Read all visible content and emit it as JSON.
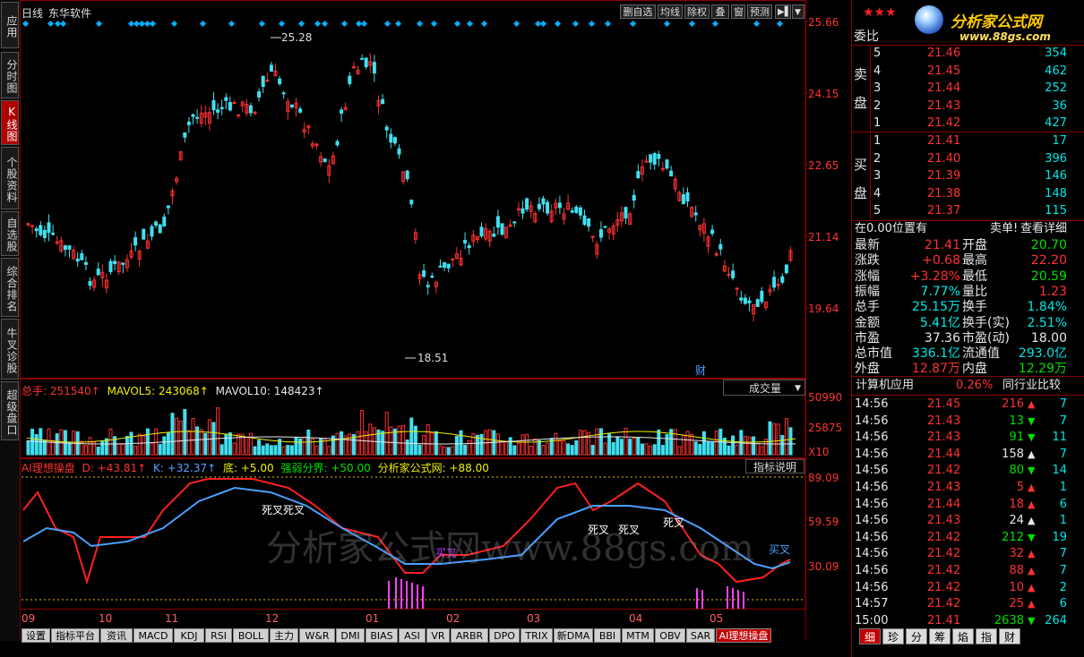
{
  "left_tabs": [
    {
      "label": "应用",
      "active": false
    },
    {
      "label": "分时图",
      "active": false
    },
    {
      "label": "K线图",
      "active": true
    },
    {
      "label": "个股资料",
      "active": false
    },
    {
      "label": "自选股",
      "active": false
    },
    {
      "label": "综合排名",
      "active": false
    },
    {
      "label": "牛叉诊股",
      "active": false
    },
    {
      "label": "超级盘口",
      "active": false
    }
  ],
  "header": {
    "period": "日线",
    "stock_name": "东华软件",
    "buttons": [
      "删自选",
      "均线",
      "除权",
      "叠",
      "窗",
      "预测"
    ]
  },
  "price_axis": [
    "25.66",
    "24.15",
    "22.65",
    "21.14",
    "19.64"
  ],
  "annotations": {
    "high": "25.28",
    "low": "18.51",
    "cai": "财"
  },
  "volume_panel": {
    "total_label": "总手: 251540↑",
    "mavol5_label": "MAVOL5: 243068↑",
    "mavol10_label": "MAVOL10: 148423↑",
    "dropdown": "成交量",
    "axis": [
      "50990",
      "25875",
      "X10"
    ]
  },
  "indicator_panel": {
    "name": "AI理想操盘",
    "d_label": "D: +43.81↑",
    "k_label": "K: +32.37↑",
    "di_label": "底: +5.00",
    "qr_label": "强弱分界: +50.00",
    "site_label": "分析家公式网: +88.00",
    "explain_button": "指标说明",
    "axis": [
      "89.09",
      "59.59",
      "30.09"
    ],
    "signals": [
      "死叉死叉",
      "买叉",
      "死叉",
      "死叉",
      "死叉",
      "买叉"
    ]
  },
  "x_axis_months": [
    "09",
    "10",
    "11",
    "12",
    "01",
    "02",
    "03",
    "04",
    "05"
  ],
  "watermark": "分析家公式网www.88gs.com",
  "bottom_tabs": [
    "设置",
    "指标平台",
    "资讯",
    "MACD",
    "KDJ",
    "RSI",
    "BOLL",
    "主力",
    "W&R",
    "DMI",
    "BIAS",
    "ASI",
    "VR",
    "ARBR",
    "DPO",
    "TRIX",
    "新DMA",
    "BBI",
    "MTM",
    "OBV",
    "SAR",
    "AI理想操盘"
  ],
  "right_panel": {
    "stars": "★★★",
    "logo_text": "分析家公式网",
    "logo_url": "www.88gs.com",
    "weibi_label": "委比",
    "sell_label": [
      "卖",
      "盘"
    ],
    "buy_label": [
      "买",
      "盘"
    ],
    "sell_orders": [
      {
        "level": "5",
        "price": "21.46",
        "vol": "354"
      },
      {
        "level": "4",
        "price": "21.45",
        "vol": "462"
      },
      {
        "level": "3",
        "price": "21.44",
        "vol": "252"
      },
      {
        "level": "2",
        "price": "21.43",
        "vol": "36"
      },
      {
        "level": "1",
        "price": "21.42",
        "vol": "427"
      }
    ],
    "buy_orders": [
      {
        "level": "1",
        "price": "21.41",
        "vol": "17"
      },
      {
        "level": "2",
        "price": "21.40",
        "vol": "396"
      },
      {
        "level": "3",
        "price": "21.39",
        "vol": "146"
      },
      {
        "level": "4",
        "price": "21.38",
        "vol": "148"
      },
      {
        "level": "5",
        "price": "21.37",
        "vol": "115"
      }
    ],
    "position_text": "在0.00位置有",
    "sell_detail": "卖单!",
    "view_detail": "查看详细",
    "quotes": [
      {
        "l1": "最新",
        "v1": "21.41",
        "l2": "开盘",
        "v2": "20.70",
        "c1": "red",
        "c2": "green"
      },
      {
        "l1": "涨跌",
        "v1": "+0.68",
        "l2": "最高",
        "v2": "22.20",
        "c1": "red",
        "c2": "red"
      },
      {
        "l1": "涨幅",
        "v1": "+3.28%",
        "l2": "最低",
        "v2": "20.59",
        "c1": "red",
        "c2": "green"
      },
      {
        "l1": "振幅",
        "v1": "7.77%",
        "l2": "量比",
        "v2": "1.23",
        "c1": "cyan",
        "c2": "red"
      },
      {
        "l1": "总手",
        "v1": "25.15万",
        "l2": "换手",
        "v2": "1.84%",
        "c1": "cyan",
        "c2": "cyan"
      },
      {
        "l1": "金额",
        "v1": "5.41亿",
        "l2": "换手(实)",
        "v2": "2.51%",
        "c1": "cyan",
        "c2": "cyan"
      },
      {
        "l1": "市盈",
        "v1": "37.36",
        "l2": "市盈(动)",
        "v2": "18.00",
        "c1": "white",
        "c2": "white"
      },
      {
        "l1": "总市值",
        "v1": "336.1亿",
        "l2": "流通值",
        "v2": "293.0亿",
        "c1": "cyan",
        "c2": "cyan"
      },
      {
        "l1": "外盘",
        "v1": "12.87万",
        "l2": "内盘",
        "v2": "12.29万",
        "c1": "red",
        "c2": "green"
      }
    ],
    "industry": {
      "name": "计算机应用",
      "change": "0.26%",
      "compare": "同行业比较"
    },
    "ticks": [
      {
        "time": "14:56",
        "price": "21.45",
        "vol": "216",
        "dir": "up",
        "n": "7"
      },
      {
        "time": "14:56",
        "price": "21.43",
        "vol": "13",
        "dir": "down",
        "n": "7"
      },
      {
        "time": "14:56",
        "price": "21.43",
        "vol": "91",
        "dir": "down",
        "n": "11"
      },
      {
        "time": "14:56",
        "price": "21.44",
        "vol": "158",
        "dir": "flat",
        "n": "7"
      },
      {
        "time": "14:56",
        "price": "21.42",
        "vol": "80",
        "dir": "down",
        "n": "14"
      },
      {
        "time": "14:56",
        "price": "21.43",
        "vol": "5",
        "dir": "up",
        "n": "1"
      },
      {
        "time": "14:56",
        "price": "21.44",
        "vol": "18",
        "dir": "up",
        "n": "6"
      },
      {
        "time": "14:56",
        "price": "21.43",
        "vol": "24",
        "dir": "flat",
        "n": "1"
      },
      {
        "time": "14:56",
        "price": "21.42",
        "vol": "212",
        "dir": "down",
        "n": "19"
      },
      {
        "time": "14:56",
        "price": "21.42",
        "vol": "32",
        "dir": "up",
        "n": "7"
      },
      {
        "time": "14:56",
        "price": "21.42",
        "vol": "88",
        "dir": "up",
        "n": "7"
      },
      {
        "time": "14:56",
        "price": "21.42",
        "vol": "10",
        "dir": "up",
        "n": "2"
      },
      {
        "time": "14:57",
        "price": "21.42",
        "vol": "25",
        "dir": "up",
        "n": "6"
      },
      {
        "time": "15:00",
        "price": "21.41",
        "vol": "2638",
        "dir": "down",
        "n": "264"
      }
    ],
    "bottom_tabs": [
      "细",
      "珍",
      "分",
      "筹",
      "焰",
      "指",
      "财"
    ]
  }
}
